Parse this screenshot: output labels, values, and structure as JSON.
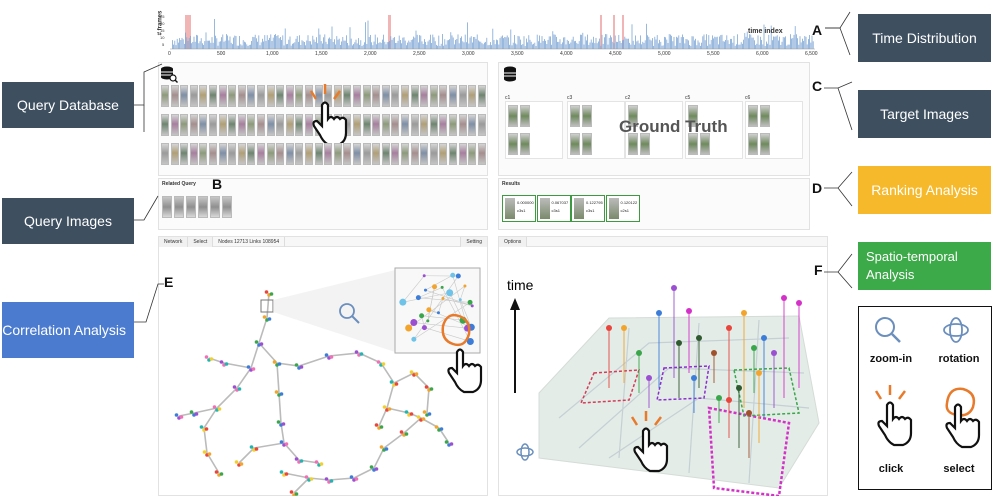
{
  "time_distribution": {
    "y_label": "# frames",
    "axis_label": "time index",
    "ticks": [
      "0",
      "500",
      "1,000",
      "1,500",
      "2,000",
      "2,500",
      "3,000",
      "3,500",
      "4,000",
      "4,500",
      "5,000",
      "5,500",
      "6,000",
      "6,500"
    ],
    "y_ticks": [
      "25",
      "20",
      "15",
      "10",
      "5"
    ]
  },
  "callouts": {
    "A": "A",
    "B": "B",
    "C": "C",
    "D": "D",
    "E": "E",
    "F": "F"
  },
  "side_labels": {
    "time_distribution": "Time Distribution",
    "query_database": "Query Database",
    "target_images": "Target Images",
    "ranking_analysis": "Ranking Analysis",
    "query_images": "Query Images",
    "spatio_temporal": "Spatio-temporal Analysis",
    "correlation": "Correlation Analysis"
  },
  "related_query": {
    "title": "Related Query"
  },
  "target": {
    "overlay": "Ground Truth",
    "groups": [
      "c1",
      "c3",
      "c2",
      "c5",
      "c6"
    ]
  },
  "results": {
    "title": "Results",
    "items": [
      {
        "score": "0.000000",
        "cam": "c3s1"
      },
      {
        "score": "0.067037",
        "cam": "c3s1"
      },
      {
        "score": "0.122795",
        "cam": "c3s1"
      },
      {
        "score": "0.120122",
        "cam": "c2s1"
      }
    ]
  },
  "network_tabs": {
    "network": "Network",
    "select": "Select",
    "stats": "Nodes 12713 Links 108954",
    "setting": "Setting"
  },
  "spatio_tabs": {
    "options": "Options"
  },
  "axis_time_label": "time",
  "legend": {
    "zoom_in": "zoom-in",
    "rotation": "rotation",
    "click": "click",
    "select": "select"
  },
  "colors": {
    "navy": "#3e4f60",
    "ranking": "#f6b92b",
    "spatio": "#3daa49",
    "correlation": "#4b7bcf",
    "highlight": "#e87a2b",
    "magenta": "#d431c8"
  }
}
